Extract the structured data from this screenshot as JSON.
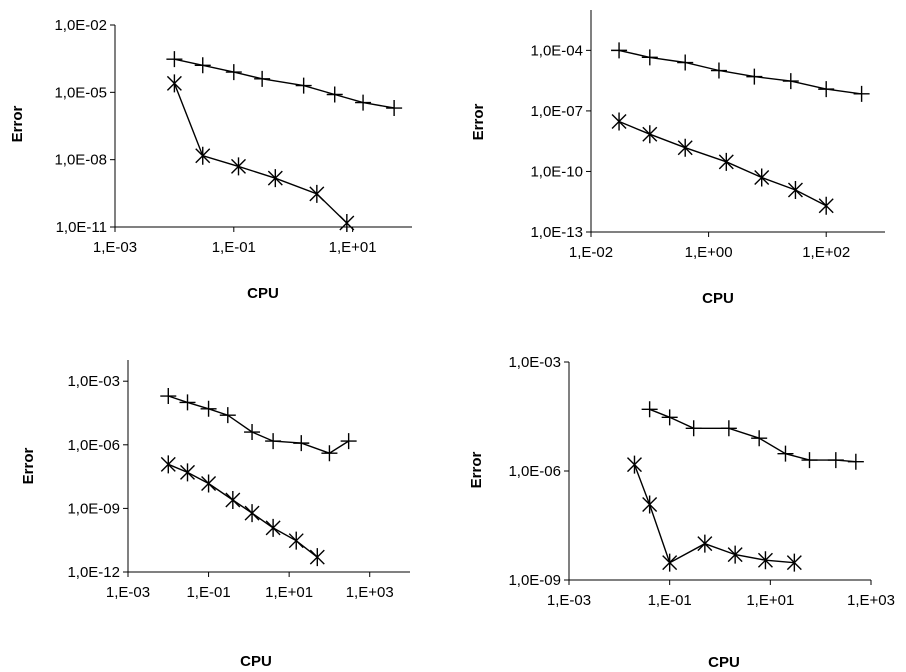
{
  "chart_data": [
    {
      "type": "scatter",
      "xlabel": "CPU",
      "ylabel": "Error",
      "xscale": "log",
      "yscale": "log",
      "xlim": [
        0.001,
        100
      ],
      "ylim": [
        1e-11,
        0.01
      ],
      "x_ticks": [
        0.001,
        0.1,
        10
      ],
      "x_tick_labels": [
        "1,E-03",
        "1,E-01",
        "1,E+01"
      ],
      "y_ticks": [
        1e-11,
        1e-08,
        1e-05,
        0.01
      ],
      "y_tick_labels": [
        "1,0E-11",
        "1,0E-08",
        "1,0E-05",
        "1,0E-02"
      ],
      "series": [
        {
          "marker": "plus",
          "x": [
            0.01,
            0.03,
            0.1,
            0.3,
            1.5,
            5,
            15,
            50
          ],
          "y": [
            0.0003,
            0.00016,
            8e-05,
            4e-05,
            2e-05,
            8e-06,
            3.5e-06,
            2e-06
          ]
        },
        {
          "marker": "star",
          "x": [
            0.01,
            0.03,
            0.12,
            0.5,
            2.5,
            8
          ],
          "y": [
            2.5e-05,
            1.5e-08,
            5e-09,
            1.5e-09,
            3e-10,
            1.5e-11
          ]
        }
      ]
    },
    {
      "type": "scatter",
      "xlabel": "CPU",
      "ylabel": "Error",
      "xscale": "log",
      "yscale": "log",
      "xlim": [
        0.01,
        1000
      ],
      "ylim": [
        1e-13,
        0.01
      ],
      "x_ticks": [
        0.01,
        1,
        100
      ],
      "x_tick_labels": [
        "1,E-02",
        "1,E+00",
        "1,E+02"
      ],
      "y_ticks": [
        1e-13,
        1e-10,
        1e-07,
        0.0001
      ],
      "y_tick_labels": [
        "1,0E-13",
        "1,0E-10",
        "1,0E-07",
        "1,0E-04"
      ],
      "series": [
        {
          "marker": "plus",
          "x": [
            0.03,
            0.1,
            0.4,
            1.5,
            6,
            25,
            100,
            400
          ],
          "y": [
            0.0001,
            4.5e-05,
            2.5e-05,
            1e-05,
            5e-06,
            3e-06,
            1.2e-06,
            7e-07
          ]
        },
        {
          "marker": "star",
          "x": [
            0.03,
            0.1,
            0.4,
            2,
            8,
            30,
            100
          ],
          "y": [
            3e-08,
            7e-09,
            1.5e-09,
            3e-10,
            5e-11,
            1.2e-11,
            2e-12
          ]
        }
      ]
    },
    {
      "type": "scatter",
      "xlabel": "CPU",
      "ylabel": "Error",
      "xscale": "log",
      "yscale": "log",
      "xlim": [
        0.001,
        10000
      ],
      "ylim": [
        1e-12,
        0.01
      ],
      "x_ticks": [
        0.001,
        0.1,
        10,
        1000
      ],
      "x_tick_labels": [
        "1,E-03",
        "1,E-01",
        "1,E+01",
        "1,E+03"
      ],
      "y_ticks": [
        1e-12,
        1e-09,
        1e-06,
        0.001
      ],
      "y_tick_labels": [
        "1,0E-12",
        "1,0E-09",
        "1,0E-06",
        "1,0E-03"
      ],
      "series": [
        {
          "marker": "plus",
          "x": [
            0.01,
            0.03,
            0.1,
            0.3,
            1.2,
            4,
            20,
            100,
            300
          ],
          "y": [
            0.0002,
            0.0001,
            5e-05,
            2.5e-05,
            4e-06,
            1.5e-06,
            1.2e-06,
            4e-07,
            1.5e-06
          ]
        },
        {
          "marker": "star",
          "x": [
            0.01,
            0.03,
            0.1,
            0.4,
            1.2,
            4,
            15,
            50
          ],
          "y": [
            1.2e-07,
            5e-08,
            1.5e-08,
            2.5e-09,
            6e-10,
            1.2e-10,
            3e-11,
            5e-12
          ]
        }
      ]
    },
    {
      "type": "scatter",
      "xlabel": "CPU",
      "ylabel": "Error",
      "xscale": "log",
      "yscale": "log",
      "xlim": [
        0.001,
        1000
      ],
      "ylim": [
        1e-09,
        0.001
      ],
      "x_ticks": [
        0.001,
        0.1,
        10,
        1000
      ],
      "x_tick_labels": [
        "1,E-03",
        "1,E-01",
        "1,E+01",
        "1,E+03"
      ],
      "y_ticks": [
        1e-09,
        1e-06,
        0.001
      ],
      "y_tick_labels": [
        "1,0E-09",
        "1,0E-06",
        "1,0E-03"
      ],
      "series": [
        {
          "marker": "plus",
          "x": [
            0.04,
            0.1,
            0.3,
            1.5,
            6,
            20,
            60,
            200,
            500
          ],
          "y": [
            5e-05,
            3e-05,
            1.5e-05,
            1.5e-05,
            8e-06,
            3e-06,
            2e-06,
            2e-06,
            1.8e-06
          ]
        },
        {
          "marker": "star",
          "x": [
            0.02,
            0.04,
            0.1,
            0.5,
            2,
            8,
            30
          ],
          "y": [
            1.5e-06,
            1.2e-07,
            3e-09,
            1e-08,
            5e-09,
            3.5e-09,
            3e-09
          ]
        }
      ]
    }
  ]
}
